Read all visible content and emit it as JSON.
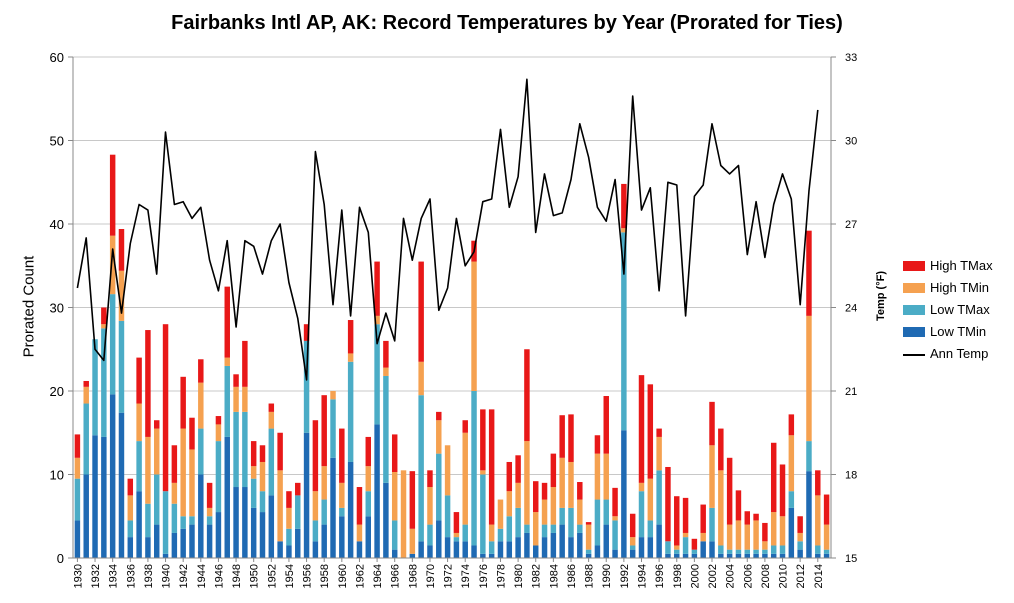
{
  "chart_data": {
    "type": "bar",
    "stacked": true,
    "title": "Fairbanks Intl AP, AK: Record Temperatures by Year (Prorated for Ties)",
    "ylabel": "Prorated Count",
    "y2label": "Temp (°F)",
    "ylim": [
      0,
      60
    ],
    "y2lim": [
      15,
      33
    ],
    "yticks": [
      "0",
      "10",
      "20",
      "30",
      "40",
      "50",
      "60"
    ],
    "y2ticks": [
      "15",
      "18",
      "21",
      "24",
      "27",
      "30",
      "33"
    ],
    "legend_position": "right",
    "grid": true,
    "colors": {
      "high_tmax": "#e81818",
      "high_tmin": "#f5a150",
      "low_tmax": "#4bacc6",
      "low_tmin": "#1f6ab3",
      "ann_temp": "#000000",
      "grid": "#c8c8c8"
    },
    "years": [
      1930,
      1931,
      1932,
      1933,
      1934,
      1935,
      1936,
      1937,
      1938,
      1939,
      1940,
      1941,
      1942,
      1943,
      1944,
      1945,
      1946,
      1947,
      1948,
      1949,
      1950,
      1951,
      1952,
      1953,
      1954,
      1955,
      1956,
      1957,
      1958,
      1959,
      1960,
      1961,
      1962,
      1963,
      1964,
      1965,
      1966,
      1967,
      1968,
      1969,
      1970,
      1971,
      1972,
      1973,
      1974,
      1975,
      1976,
      1977,
      1978,
      1979,
      1980,
      1981,
      1982,
      1983,
      1984,
      1985,
      1986,
      1987,
      1988,
      1989,
      1990,
      1991,
      1992,
      1993,
      1994,
      1995,
      1996,
      1997,
      1998,
      1999,
      2000,
      2001,
      2002,
      2003,
      2004,
      2005,
      2006,
      2007,
      2008,
      2009,
      2010,
      2011,
      2012,
      2013,
      2014,
      2015
    ],
    "x_tick_labels": [
      "1930",
      "1932",
      "1934",
      "1936",
      "1938",
      "1940",
      "1942",
      "1944",
      "1946",
      "1948",
      "1950",
      "1952",
      "1954",
      "1956",
      "1958",
      "1960",
      "1962",
      "1964",
      "1966",
      "1968",
      "1970",
      "1972",
      "1974",
      "1976",
      "1978",
      "1980",
      "1982",
      "1984",
      "1986",
      "1988",
      "1990",
      "1992",
      "1994",
      "1996",
      "1998",
      "2000",
      "2002",
      "2004",
      "2006",
      "2008",
      "2010",
      "2012",
      "2014"
    ],
    "series": [
      {
        "name": "Low TMin",
        "key": "low_tmin",
        "values": [
          4.5,
          10,
          14.7,
          14.5,
          19.6,
          17.4,
          2.5,
          8,
          2.5,
          4,
          0.5,
          3,
          3.5,
          4,
          10,
          4,
          5.5,
          14.5,
          8.5,
          8.5,
          6,
          5.5,
          7.5,
          2,
          1.5,
          3.5,
          15,
          2,
          4,
          12,
          5,
          11.5,
          2,
          5,
          16,
          9,
          1,
          0,
          0.5,
          2,
          1.5,
          4.5,
          2.5,
          2,
          2,
          1.5,
          0.5,
          0.5,
          2,
          2,
          2.5,
          3,
          1.5,
          2.5,
          3,
          4,
          2.5,
          3,
          0.5,
          1.5,
          4,
          1,
          15.3,
          1,
          2.5,
          2.5,
          4,
          0.5,
          0.5,
          0.5,
          0.5,
          2,
          2,
          0.5,
          0.5,
          0.5,
          0.5,
          0.5,
          0.5,
          0.5,
          0.5,
          6,
          1,
          10.4,
          0.5,
          0.5
        ]
      },
      {
        "name": "Low TMax",
        "key": "low_tmax",
        "values": [
          5,
          8.5,
          11.5,
          13,
          12,
          11,
          2,
          6,
          4,
          6,
          7.5,
          3.5,
          1.5,
          1,
          5.5,
          1,
          8.5,
          8.5,
          9,
          9,
          3.5,
          2.5,
          8,
          0,
          2,
          4,
          11,
          2.5,
          3,
          7,
          1,
          12,
          0,
          3,
          12,
          12.8,
          3.5,
          0,
          0,
          17.5,
          2.5,
          8,
          5,
          0.5,
          2,
          18.5,
          9.5,
          1.5,
          1.5,
          3,
          3.5,
          1,
          0,
          1.5,
          1,
          2,
          3.5,
          1,
          0.5,
          5.5,
          3,
          3.5,
          23.7,
          0.5,
          5.5,
          2,
          6.5,
          1.5,
          0.5,
          2,
          0.5,
          0,
          4,
          1,
          0.5,
          0.5,
          0.5,
          0.5,
          0.5,
          1,
          1,
          2,
          1,
          3.6,
          1,
          0.5
        ]
      },
      {
        "name": "High TMin",
        "key": "high_tmin",
        "values": [
          2.5,
          2,
          0,
          0.5,
          7,
          6,
          3,
          4.5,
          8,
          5.5,
          0,
          2.5,
          10.5,
          8,
          5.5,
          1,
          2,
          1,
          3,
          3,
          1.5,
          3.5,
          2,
          8.5,
          2.5,
          0,
          0,
          3.5,
          4,
          1,
          3,
          1,
          2,
          3,
          1,
          1,
          5.8,
          10.5,
          3,
          4,
          4.5,
          4,
          6,
          0.5,
          11,
          15.5,
          0.5,
          2,
          3.5,
          3,
          3,
          10,
          4,
          3,
          4.5,
          6,
          5.5,
          3,
          3,
          5.5,
          5.5,
          0.5,
          0.5,
          1,
          1,
          5,
          4,
          0,
          0.5,
          0.5,
          0,
          1,
          7.5,
          9,
          3,
          3.5,
          3,
          3.5,
          1,
          4,
          3.5,
          6.7,
          1,
          15,
          6,
          3
        ]
      },
      {
        "name": "High TMax",
        "key": "high_tmax",
        "values": [
          2.8,
          0.7,
          0,
          2,
          9.7,
          5,
          2,
          5.5,
          12.8,
          1,
          20,
          4.5,
          6.2,
          3.8,
          2.8,
          3,
          1,
          8.5,
          1.5,
          5.5,
          3,
          2,
          1,
          4.5,
          2,
          1.5,
          2,
          8.5,
          8.5,
          0,
          6.5,
          4,
          4.5,
          3.5,
          6.5,
          3.2,
          4.5,
          0,
          6.9,
          12,
          2,
          1,
          0,
          2.5,
          1.5,
          2.5,
          7.3,
          13.8,
          0,
          3.5,
          3.3,
          11,
          3.7,
          2,
          4,
          5.1,
          5.7,
          2.1,
          0.3,
          2.2,
          6.9,
          3.4,
          5.3,
          2.8,
          12.9,
          11.3,
          1,
          8.9,
          5.9,
          4.2,
          1.3,
          3.4,
          5.2,
          5,
          8,
          3.6,
          1.6,
          0.8,
          2.2,
          8.3,
          6.2,
          2.5,
          2,
          10.2,
          3,
          3.6
        ]
      },
      {
        "name": "Ann Temp",
        "key": "ann_temp",
        "axis": "right",
        "values": [
          24.7,
          26.5,
          22.5,
          22.1,
          26.1,
          23.8,
          26.3,
          27.7,
          27.5,
          25.2,
          30.3,
          27.7,
          27.8,
          27.2,
          27.6,
          25.7,
          24.6,
          26.4,
          23.3,
          26.4,
          26.2,
          25.2,
          26.4,
          27,
          24.9,
          23.6,
          21.4,
          29.6,
          27.7,
          24.1,
          27.5,
          23.7,
          27.6,
          26.7,
          22.7,
          23.8,
          22.8,
          27.2,
          25.7,
          27.2,
          27.9,
          23.9,
          24.7,
          27.2,
          25.5,
          26,
          27.8,
          27.9,
          30.4,
          27.6,
          28.7,
          32.2,
          26.7,
          28.8,
          27.3,
          27.4,
          28.6,
          30.6,
          29.4,
          27.6,
          27.1,
          28.6,
          25.2,
          31.6,
          27.5,
          28.3,
          24.6,
          28.5,
          28.4,
          23.7,
          28,
          28.4,
          30.6,
          29.1,
          28.8,
          29.1,
          25.9,
          27.8,
          25.8,
          27.7,
          28.8,
          27.9,
          24.1,
          28.2,
          31.1,
          null
        ]
      }
    ]
  }
}
